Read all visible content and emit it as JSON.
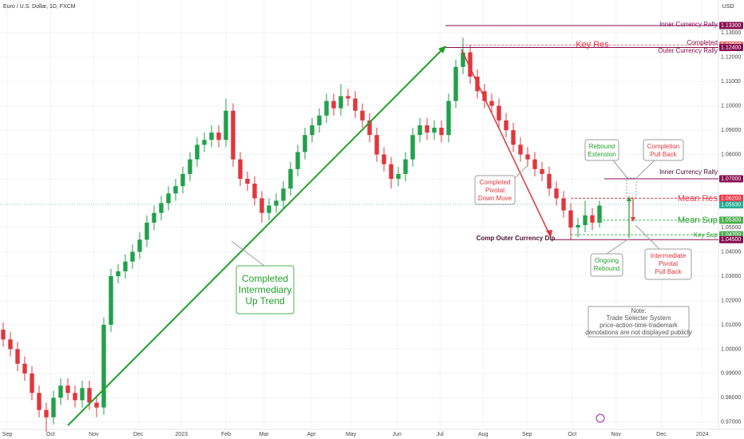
{
  "chart_data": {
    "type": "candlestick",
    "title": "Euro / U.S. Dollar, 1D, FXCM",
    "y_axis_label": "USD",
    "up_color": "#22a04b",
    "down_color": "#e0363d",
    "open": [
      1.008,
      1.004,
      1.0,
      0.994,
      0.99,
      0.982,
      0.975,
      0.972,
      0.98,
      0.985,
      0.982,
      0.979,
      0.984,
      0.978,
      0.976,
      1.01,
      1.03,
      1.032,
      1.036,
      1.04,
      1.045,
      1.052,
      1.056,
      1.06,
      1.064,
      1.067,
      1.072,
      1.078,
      1.084,
      1.086,
      1.089,
      1.086,
      1.098,
      1.078,
      1.07,
      1.068,
      1.062,
      1.056,
      1.059,
      1.061,
      1.066,
      1.074,
      1.081,
      1.088,
      1.092,
      1.096,
      1.102,
      1.099,
      1.104,
      1.103,
      1.098,
      1.094,
      1.088,
      1.08,
      1.076,
      1.07,
      1.072,
      1.078,
      1.088,
      1.092,
      1.089,
      1.091,
      1.088,
      1.102,
      1.116,
      1.122,
      1.112,
      1.106,
      1.102,
      1.1,
      1.094,
      1.09,
      1.084,
      1.08,
      1.078,
      1.074,
      1.072,
      1.066,
      1.062,
      1.057,
      1.05,
      1.051,
      1.055,
      1.052
    ],
    "high": [
      1.011,
      1.007,
      1.003,
      0.997,
      0.993,
      0.985,
      0.978,
      0.983,
      0.988,
      0.988,
      0.985,
      0.987,
      0.987,
      0.981,
      1.013,
      1.033,
      1.035,
      1.039,
      1.043,
      1.048,
      1.055,
      1.059,
      1.063,
      1.067,
      1.07,
      1.075,
      1.081,
      1.087,
      1.089,
      1.092,
      1.092,
      1.103,
      1.101,
      1.081,
      1.073,
      1.071,
      1.065,
      1.062,
      1.064,
      1.069,
      1.077,
      1.084,
      1.091,
      1.095,
      1.099,
      1.105,
      1.105,
      1.109,
      1.107,
      1.106,
      1.101,
      1.097,
      1.091,
      1.083,
      1.079,
      1.075,
      1.081,
      1.091,
      1.095,
      1.095,
      1.094,
      1.094,
      1.105,
      1.119,
      1.128,
      1.125,
      1.115,
      1.109,
      1.105,
      1.103,
      1.097,
      1.093,
      1.087,
      1.083,
      1.081,
      1.077,
      1.075,
      1.069,
      1.065,
      1.06,
      1.054,
      1.061,
      1.058,
      1.061
    ],
    "low": [
      1.001,
      0.997,
      0.991,
      0.987,
      0.979,
      0.972,
      0.966,
      0.969,
      0.977,
      0.979,
      0.976,
      0.976,
      0.975,
      0.972,
      0.973,
      1.007,
      1.027,
      1.029,
      1.033,
      1.037,
      1.042,
      1.049,
      1.053,
      1.057,
      1.061,
      1.064,
      1.069,
      1.075,
      1.081,
      1.083,
      1.083,
      1.083,
      1.075,
      1.067,
      1.065,
      1.059,
      1.052,
      1.053,
      1.056,
      1.058,
      1.063,
      1.071,
      1.078,
      1.085,
      1.089,
      1.093,
      1.096,
      1.096,
      1.1,
      1.095,
      1.091,
      1.085,
      1.077,
      1.073,
      1.066,
      1.067,
      1.069,
      1.075,
      1.085,
      1.086,
      1.086,
      1.085,
      1.085,
      1.099,
      1.113,
      1.109,
      1.103,
      1.099,
      1.097,
      1.091,
      1.087,
      1.081,
      1.077,
      1.075,
      1.071,
      1.069,
      1.063,
      1.059,
      1.054,
      1.045,
      1.046,
      1.048,
      1.049,
      1.05
    ],
    "close": [
      1.004,
      1.0,
      0.994,
      0.99,
      0.982,
      0.975,
      0.972,
      0.98,
      0.985,
      0.982,
      0.979,
      0.984,
      0.978,
      0.976,
      1.01,
      1.03,
      1.032,
      1.036,
      1.04,
      1.045,
      1.052,
      1.056,
      1.06,
      1.064,
      1.067,
      1.072,
      1.078,
      1.084,
      1.086,
      1.089,
      1.086,
      1.098,
      1.078,
      1.07,
      1.068,
      1.062,
      1.056,
      1.059,
      1.061,
      1.066,
      1.074,
      1.081,
      1.088,
      1.092,
      1.096,
      1.102,
      1.099,
      1.104,
      1.103,
      1.098,
      1.094,
      1.088,
      1.08,
      1.076,
      1.07,
      1.072,
      1.078,
      1.088,
      1.092,
      1.089,
      1.091,
      1.088,
      1.102,
      1.116,
      1.122,
      1.112,
      1.106,
      1.102,
      1.1,
      1.094,
      1.09,
      1.084,
      1.08,
      1.078,
      1.074,
      1.072,
      1.066,
      1.062,
      1.057,
      1.05,
      1.051,
      1.055,
      1.052,
      1.059
    ],
    "xlim": [
      -0.444,
      99.556
    ],
    "xticks": [
      {
        "value": 0.56,
        "label": "Sep"
      },
      {
        "value": 6.6,
        "label": "Oct"
      },
      {
        "value": 12.6,
        "label": "Nov"
      },
      {
        "value": 18.8,
        "label": "Dec"
      },
      {
        "value": 24.8,
        "label": "2023"
      },
      {
        "value": 31,
        "label": "Feb"
      },
      {
        "value": 36.3,
        "label": "Mar"
      },
      {
        "value": 42.9,
        "label": "Apr"
      },
      {
        "value": 48.4,
        "label": "May"
      },
      {
        "value": 54.8,
        "label": "Jun"
      },
      {
        "value": 60.8,
        "label": "Jul"
      },
      {
        "value": 66.8,
        "label": "Aug"
      },
      {
        "value": 72.9,
        "label": "Sep"
      },
      {
        "value": 79.2,
        "label": "Oct"
      },
      {
        "value": 85.3,
        "label": "Nov"
      },
      {
        "value": 91.6,
        "label": "Dec"
      },
      {
        "value": 97.3,
        "label": "2024"
      }
    ],
    "ylim": [
      0.967,
      1.1435
    ],
    "yticks": [
      {
        "value": 0.97,
        "label": "0.97000"
      },
      {
        "value": 0.98,
        "label": "0.98000"
      },
      {
        "value": 0.99,
        "label": "0.99000"
      },
      {
        "value": 1.0,
        "label": "1.00000"
      },
      {
        "value": 1.01,
        "label": "1.01000"
      },
      {
        "value": 1.02,
        "label": "1.02000"
      },
      {
        "value": 1.03,
        "label": "1.03000"
      },
      {
        "value": 1.04,
        "label": "1.04000"
      },
      {
        "value": 1.05,
        "label": "1.05000"
      },
      {
        "value": 1.06,
        "label": "1.06000"
      },
      {
        "value": 1.07,
        "label": "1.07000"
      },
      {
        "value": 1.08,
        "label": "1.08000"
      },
      {
        "value": 1.09,
        "label": "1.09000"
      },
      {
        "value": 1.1,
        "label": "1.10000"
      },
      {
        "value": 1.11,
        "label": "1.11000"
      },
      {
        "value": 1.12,
        "label": "1.12000"
      },
      {
        "value": 1.13,
        "label": "1.13000"
      }
    ],
    "levels": [
      {
        "name": "Inner Currency Rally",
        "value": 1.133,
        "label": "1.13300",
        "color": "#880e4f"
      },
      {
        "name": "Completed",
        "value": 1.125,
        "label": "1.12500",
        "color": "#e57373"
      },
      {
        "name": "Outer Currency Rally",
        "value": 1.124,
        "label": "1.12400",
        "color": "#880e4f"
      },
      {
        "name": "Inner Currency Rally",
        "value": 1.07,
        "label": "1.07000",
        "color": "#880e4f"
      },
      {
        "name": "Mean Res",
        "value": 1.062,
        "label": "1.06200",
        "color": "#f23645"
      },
      {
        "value": 1.0593,
        "label": "1.05930",
        "color": "#22ab94"
      },
      {
        "name": "Mean Sup",
        "value": 1.053,
        "label": "1.05300",
        "color": "#4caf50"
      },
      {
        "name": "Key Sup",
        "value": 1.047,
        "label": "1.04700",
        "color": "#4caf50"
      },
      {
        "name": "Comp Outer Currency Dip",
        "value": 1.045,
        "label": "1.04500",
        "color": "#880e4f"
      }
    ],
    "annotations": {
      "key_res": "Key Res",
      "up_trend": [
        "Completed",
        "Intermediary",
        "Up Trend"
      ],
      "down_move": [
        "Completed",
        "Pivotal",
        "Down Move"
      ],
      "rebound_extension": [
        "Rebound",
        "Extension"
      ],
      "completion_pull_back": [
        "Completion",
        "Pull Back"
      ],
      "ongoing_rebound": [
        "Ongoing",
        "Rebound"
      ],
      "intermediate_pull_back": [
        "Intermediate",
        "Pivotal",
        "Pull Back"
      ],
      "note": [
        "Note:",
        "Trade Selecter System",
        "price-action-time-trademark",
        "denotations are not displayed publicly"
      ]
    }
  }
}
